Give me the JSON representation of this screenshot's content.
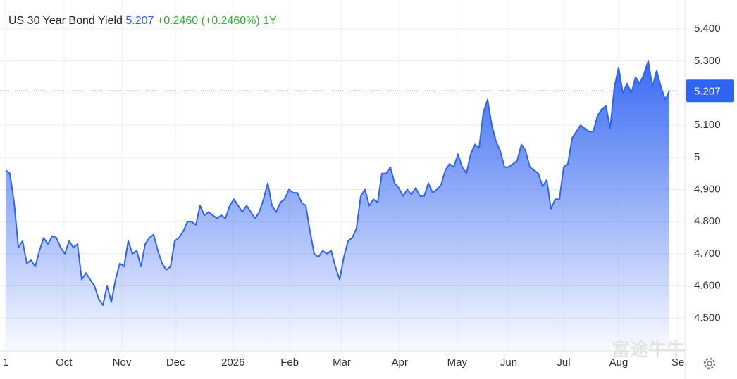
{
  "chart_data": {
    "type": "line",
    "title": "US 30 Year Bond Yield",
    "last": "5.207",
    "change": "+0.2460",
    "change_pct": "(+0.2460%)",
    "period": "1Y",
    "watermark": "富途牛牛",
    "series": [
      {
        "color": "#2f63f2",
        "values": [
          4.96,
          4.95,
          4.86,
          4.72,
          4.74,
          4.67,
          4.68,
          4.66,
          4.71,
          4.75,
          4.73,
          4.755,
          4.75,
          4.72,
          4.7,
          4.74,
          4.72,
          4.73,
          4.62,
          4.64,
          4.62,
          4.6,
          4.56,
          4.54,
          4.6,
          4.55,
          4.62,
          4.67,
          4.66,
          4.74,
          4.7,
          4.71,
          4.66,
          4.73,
          4.75,
          4.76,
          4.71,
          4.67,
          4.65,
          4.66,
          4.74,
          4.75,
          4.77,
          4.8,
          4.8,
          4.79,
          4.85,
          4.82,
          4.83,
          4.82,
          4.81,
          4.82,
          4.81,
          4.85,
          4.87,
          4.85,
          4.83,
          4.85,
          4.83,
          4.81,
          4.83,
          4.87,
          4.92,
          4.85,
          4.83,
          4.86,
          4.87,
          4.9,
          4.89,
          4.89,
          4.86,
          4.85,
          4.77,
          4.7,
          4.69,
          4.71,
          4.7,
          4.71,
          4.66,
          4.62,
          4.69,
          4.74,
          4.75,
          4.78,
          4.88,
          4.9,
          4.85,
          4.87,
          4.86,
          4.95,
          4.95,
          4.97,
          4.92,
          4.905,
          4.88,
          4.9,
          4.885,
          4.905,
          4.88,
          4.88,
          4.92,
          4.89,
          4.9,
          4.915,
          4.96,
          4.98,
          4.97,
          5.01,
          4.97,
          4.95,
          5.01,
          5.04,
          5.03,
          5.14,
          5.18,
          5.1,
          5.05,
          5.02,
          4.97,
          4.97,
          4.98,
          4.99,
          5.04,
          5.02,
          4.97,
          4.96,
          4.95,
          4.91,
          4.93,
          4.84,
          4.87,
          4.87,
          4.97,
          4.98,
          5.06,
          5.08,
          5.1,
          5.09,
          5.08,
          5.08,
          5.13,
          5.15,
          5.16,
          5.09,
          5.22,
          5.28,
          5.2,
          5.23,
          5.2,
          5.25,
          5.23,
          5.26,
          5.3,
          5.22,
          5.27,
          5.22,
          5.18,
          5.207
        ]
      }
    ],
    "ylim": [
      4.4,
      5.49
    ],
    "yticks": [
      {
        "value": 4.5,
        "label": "4.500"
      },
      {
        "value": 4.6,
        "label": "4.600"
      },
      {
        "value": 4.7,
        "label": "4.700"
      },
      {
        "value": 4.8,
        "label": "4.800"
      },
      {
        "value": 4.9,
        "label": "4.900"
      },
      5,
      {
        "value": 5.1,
        "label": "5.100"
      },
      {
        "value": 5.3,
        "label": "5.300"
      },
      {
        "value": 5.4,
        "label": "5.400"
      }
    ],
    "xticks": [
      {
        "value": 0,
        "label": "1"
      },
      {
        "value": 13.8,
        "label": "Oct"
      },
      {
        "value": 27.5,
        "label": "Nov"
      },
      {
        "value": 40.2,
        "label": "Dec"
      },
      {
        "value": 53.8,
        "label": "2026"
      },
      {
        "value": 67.2,
        "label": "Feb"
      },
      {
        "value": 79.5,
        "label": "Mar"
      },
      {
        "value": 93.2,
        "label": "Apr"
      },
      {
        "value": 106.8,
        "label": "May"
      },
      {
        "value": 119,
        "label": "Jun"
      },
      {
        "value": 132,
        "label": "Jul"
      },
      {
        "value": 145,
        "label": "Aug"
      },
      {
        "value": 159,
        "label": "Se"
      }
    ],
    "grid": true
  }
}
